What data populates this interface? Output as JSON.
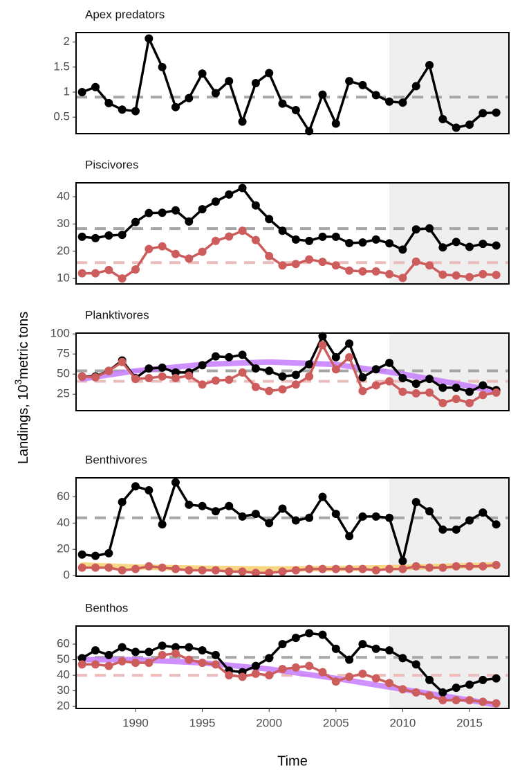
{
  "chart_data": [
    {
      "type": "line",
      "title": "Apex predators",
      "shade_from": 2009,
      "xlim": [
        1985.55,
        2017.95
      ],
      "ylim": [
        0.17,
        2.19
      ],
      "yticks": [
        0.5,
        1,
        1.5,
        2
      ],
      "x": [
        1986,
        1987,
        1988,
        1989,
        1990,
        1991,
        1992,
        1993,
        1994,
        1995,
        1996,
        1997,
        1998,
        1999,
        2000,
        2001,
        2002,
        2003,
        2004,
        2005,
        2006,
        2007,
        2008,
        2009,
        2010,
        2011,
        2012,
        2013,
        2014,
        2015,
        2016,
        2017
      ],
      "series": [
        {
          "color": "#000000",
          "mean": 0.9,
          "mean_color": "#a6a6a6",
          "values": [
            1.0,
            1.1,
            0.78,
            0.65,
            0.62,
            2.07,
            1.5,
            0.7,
            0.88,
            1.37,
            0.98,
            1.22,
            0.41,
            1.18,
            1.38,
            0.77,
            0.64,
            0.22,
            0.95,
            0.37,
            1.22,
            1.14,
            0.94,
            0.81,
            0.79,
            1.12,
            1.54,
            0.46,
            0.29,
            0.35,
            0.58,
            0.59
          ]
        }
      ]
    },
    {
      "type": "line",
      "title": "Piscivores",
      "shade_from": 2009,
      "xlim": [
        1985.55,
        2017.95
      ],
      "ylim": [
        8.0,
        45.1
      ],
      "yticks": [
        10,
        20,
        30,
        40
      ],
      "x": [
        1986,
        1987,
        1988,
        1989,
        1990,
        1991,
        1992,
        1993,
        1994,
        1995,
        1996,
        1997,
        1998,
        1999,
        2000,
        2001,
        2002,
        2003,
        2004,
        2005,
        2006,
        2007,
        2008,
        2009,
        2010,
        2011,
        2012,
        2013,
        2014,
        2015,
        2016,
        2017
      ],
      "series": [
        {
          "color": "#000000",
          "mean": 28.3,
          "mean_color": "#a6a6a6",
          "values": [
            25.3,
            24.8,
            25.8,
            26,
            30.7,
            34,
            34.1,
            35,
            30.9,
            35.4,
            38.2,
            40.8,
            43.2,
            36.8,
            31.8,
            27.5,
            24.3,
            23.8,
            25.3,
            25.3,
            23,
            23.2,
            24.3,
            22.9,
            20.6,
            28,
            28.4,
            21.4,
            23.4,
            21.6,
            22.7,
            22.1
          ]
        },
        {
          "color": "#cd5c5c",
          "mean": 15.8,
          "mean_color": "#ebbcbc",
          "values": [
            11.9,
            11.9,
            13.1,
            10,
            13.3,
            20.8,
            21.8,
            19,
            17.3,
            19.8,
            23.8,
            25.4,
            27.5,
            24.1,
            18.2,
            14.8,
            15.3,
            17,
            16.1,
            14.8,
            12.9,
            12.6,
            12.6,
            11.6,
            10.2,
            16.2,
            14.8,
            11.4,
            11.1,
            10.5,
            11.6,
            11.3
          ]
        }
      ]
    },
    {
      "type": "line",
      "title": "Planktivores",
      "shade_from": 2009,
      "xlim": [
        1985.55,
        2017.95
      ],
      "ylim": [
        4.5,
        101
      ],
      "yticks": [
        25,
        50,
        75,
        100
      ],
      "ylabel": {
        "text": "Landings, 10",
        "sup": "3",
        "after": "metric tons"
      },
      "x": [
        1986,
        1987,
        1988,
        1989,
        1990,
        1991,
        1992,
        1993,
        1994,
        1995,
        1996,
        1997,
        1998,
        1999,
        2000,
        2001,
        2002,
        2003,
        2004,
        2005,
        2006,
        2007,
        2008,
        2009,
        2010,
        2011,
        2012,
        2013,
        2014,
        2015,
        2016,
        2017
      ],
      "trends": [
        {
          "color": "#c77dff",
          "x": [
            1986,
            1990,
            1995,
            2000,
            2005,
            2010,
            2015,
            2017
          ],
          "values": [
            44,
            54,
            62,
            65,
            62,
            50,
            35,
            28
          ]
        }
      ],
      "series": [
        {
          "color": "#000000",
          "mean": 54,
          "mean_color": "#a6a6a6",
          "values": [
            47,
            47,
            54,
            67,
            45,
            57,
            58,
            52,
            52,
            61,
            72,
            71,
            74,
            57,
            54,
            47,
            49,
            62,
            97,
            71,
            88,
            46,
            56,
            64,
            45,
            38,
            44,
            33,
            33,
            28,
            36,
            30
          ]
        },
        {
          "color": "#cd5c5c",
          "mean": 41,
          "mean_color": "#ebbcbc",
          "values": [
            47,
            46,
            54,
            65,
            44,
            45,
            47,
            45,
            48,
            37,
            42,
            43,
            52,
            34,
            29,
            31,
            37,
            47,
            86,
            56,
            71,
            29,
            36,
            41,
            28,
            26,
            27,
            14,
            19,
            14,
            24,
            27
          ]
        }
      ]
    },
    {
      "type": "line",
      "title": "Benthivores",
      "shade_from": 2009,
      "xlim": [
        1985.55,
        2017.95
      ],
      "ylim": [
        -0.5,
        74.5
      ],
      "yticks": [
        0,
        20,
        40,
        60
      ],
      "x": [
        1986,
        1987,
        1988,
        1989,
        1990,
        1991,
        1992,
        1993,
        1994,
        1995,
        1996,
        1997,
        1998,
        1999,
        2000,
        2001,
        2002,
        2003,
        2004,
        2005,
        2006,
        2007,
        2008,
        2009,
        2010,
        2011,
        2012,
        2013,
        2014,
        2015,
        2016,
        2017
      ],
      "trends": [
        {
          "color": "#f5d06e",
          "x": [
            1986,
            1990,
            1995,
            2000,
            2005,
            2010,
            2015,
            2017
          ],
          "values": [
            8,
            6.5,
            5.5,
            5,
            5.3,
            6.2,
            7.5,
            8
          ]
        }
      ],
      "series": [
        {
          "color": "#000000",
          "mean": 44,
          "mean_color": "#a6a6a6",
          "values": [
            16,
            15,
            17,
            56,
            68,
            65,
            39,
            71,
            54,
            53,
            49,
            53,
            45,
            47,
            40,
            51,
            42,
            44,
            60,
            47,
            30,
            45,
            45,
            44,
            11,
            56,
            49,
            35,
            35,
            42,
            48,
            39
          ]
        },
        {
          "color": "#cd5c5c",
          "values": [
            6,
            6,
            6,
            4,
            5,
            7,
            6,
            5,
            4,
            4,
            4,
            3,
            3,
            2,
            2,
            3,
            4,
            5,
            5,
            5,
            5,
            5,
            4,
            5,
            5,
            7,
            6,
            6,
            7,
            7,
            7,
            8
          ]
        }
      ]
    },
    {
      "type": "line",
      "title": "Benthos",
      "shade_from": 2009,
      "xlim": [
        1985.55,
        2017.95
      ],
      "ylim": [
        18.7,
        71.6
      ],
      "yticks": [
        20,
        30,
        40,
        50,
        60
      ],
      "xticks": [
        1990,
        1995,
        2000,
        2005,
        2010,
        2015
      ],
      "xlabel": "Time",
      "x": [
        1986,
        1987,
        1988,
        1989,
        1990,
        1991,
        1992,
        1993,
        1994,
        1995,
        1996,
        1997,
        1998,
        1999,
        2000,
        2001,
        2002,
        2003,
        2004,
        2005,
        2006,
        2007,
        2008,
        2009,
        2010,
        2011,
        2012,
        2013,
        2014,
        2015,
        2016,
        2017
      ],
      "trends": [
        {
          "color": "#c77dff",
          "x": [
            1986,
            1990,
            1995,
            2000,
            2005,
            2010,
            2015,
            2017
          ],
          "values": [
            50,
            50,
            48,
            44,
            38,
            31,
            24,
            21
          ]
        }
      ],
      "series": [
        {
          "color": "#000000",
          "mean": 51.5,
          "mean_color": "#a6a6a6",
          "values": [
            51,
            56,
            53,
            58,
            55,
            55,
            59,
            58,
            58,
            56,
            53,
            43,
            42,
            46,
            51,
            60,
            64,
            67,
            66,
            57,
            50,
            60,
            57,
            56,
            51,
            47,
            37,
            29,
            32,
            34,
            37,
            38
          ]
        },
        {
          "color": "#cd5c5c",
          "mean": 40,
          "mean_color": "#ebbcbc",
          "values": [
            47,
            47,
            46,
            49,
            48,
            48,
            53,
            54,
            50,
            48,
            47,
            40,
            39,
            41,
            40,
            44,
            45,
            46,
            42,
            36,
            39,
            41,
            38,
            35,
            31,
            29,
            27,
            24,
            24,
            24,
            23,
            22
          ]
        }
      ]
    }
  ]
}
